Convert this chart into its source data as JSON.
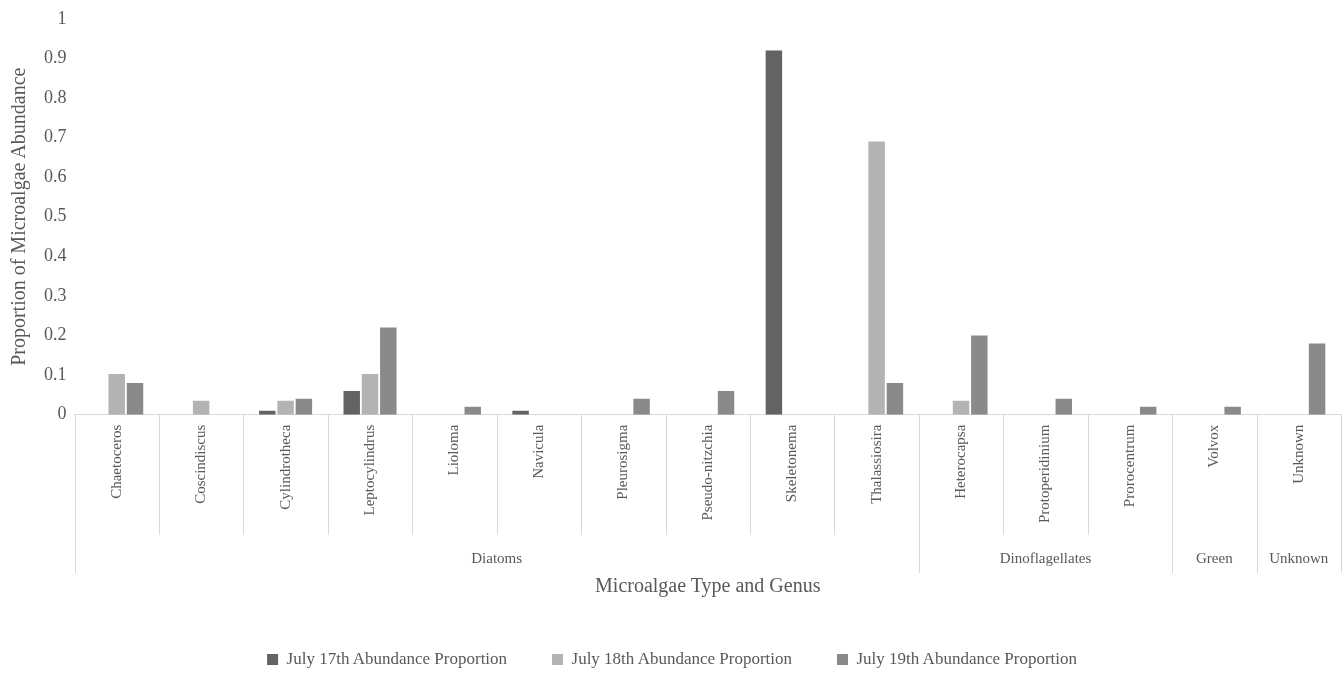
{
  "chart_data": {
    "type": "bar",
    "xlabel": "Microalgae Type and Genus",
    "ylabel": "Proportion of Microalgae Abundance",
    "categories": [
      "Chaetoceros",
      "Coscindiscus",
      "Cylindrotheca",
      "Leptocylindrus",
      "Lioloma",
      "Navicula",
      "Pleurosigma",
      "Pseudo-nitzchia",
      "Skeletonema",
      "Thalassiosira",
      "Heterocapsa",
      "Protoperidinium",
      "Prorocentrum",
      "Volvox",
      "Unknown"
    ],
    "series": [
      {
        "name": "July 17th Abundance Proportion",
        "color": "#636363",
        "values": [
          0,
          0,
          0.01,
          0.06,
          0,
          0.01,
          0,
          0,
          0.92,
          0,
          0,
          0,
          0,
          0,
          0
        ]
      },
      {
        "name": "July 18th Abundance Proportion",
        "color": "#b3b3b3",
        "values": [
          0.103,
          0.035,
          0.035,
          0.103,
          0,
          0,
          0,
          0,
          0,
          0.69,
          0.035,
          0,
          0,
          0,
          0
        ]
      },
      {
        "name": "July 19th Abundance Proportion",
        "color": "#8a8a8a",
        "values": [
          0.08,
          0,
          0.04,
          0.22,
          0.02,
          0,
          0.04,
          0.06,
          0,
          0.08,
          0.2,
          0.04,
          0.02,
          0.02,
          0.18
        ]
      }
    ],
    "annotations": [
      "Diatoms",
      "Dinoflagellates",
      "Green",
      "Unknown"
    ],
    "ylim": [
      0,
      1
    ],
    "yticks": [
      0,
      0.1,
      0.2,
      0.3,
      0.4,
      0.5,
      0.6,
      0.7,
      0.8,
      0.9,
      1
    ],
    "grid": false,
    "legend": "bottom"
  }
}
